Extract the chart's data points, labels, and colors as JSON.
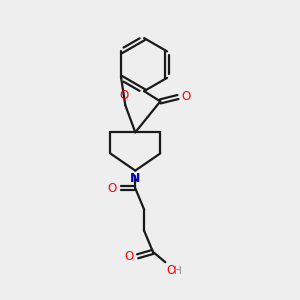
{
  "bg_color": "#eeeeee",
  "bond_color": "#1a1a1a",
  "O_color": "#ff0000",
  "N_color": "#0000cc",
  "H_color": "#888888",
  "line_width": 1.6,
  "font_size": 8.5,
  "xlim": [
    0,
    10
  ],
  "ylim": [
    0,
    10
  ]
}
